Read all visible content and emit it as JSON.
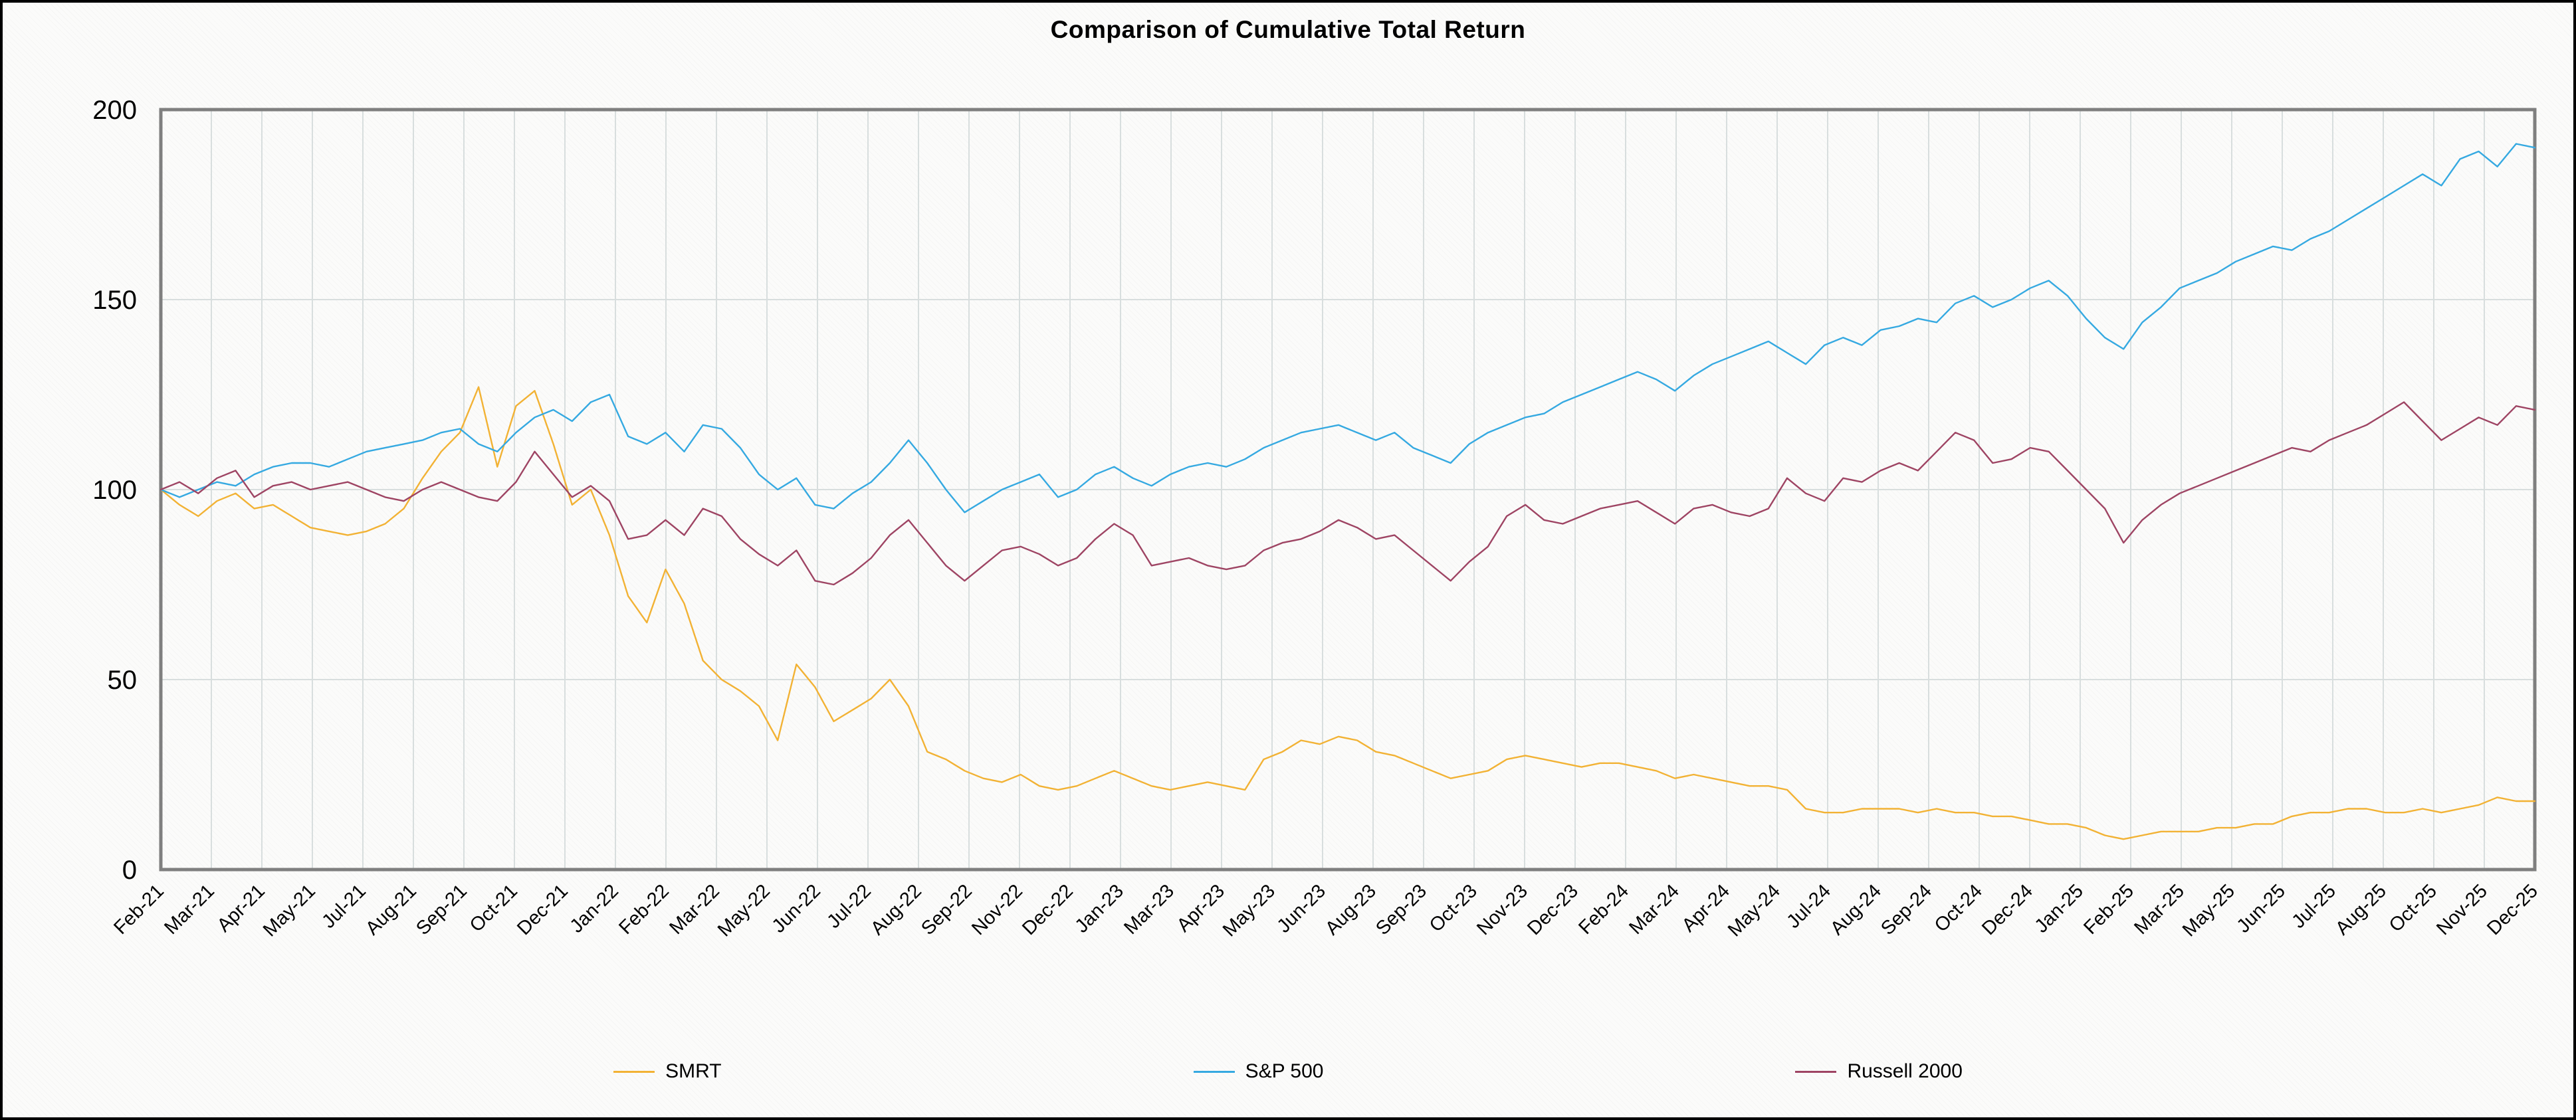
{
  "colors": {
    "grid": "#D8DEDE",
    "frame": "#7F7F7F",
    "background": "#FBFBFA",
    "title_color": "#000000",
    "smrt": "#F2B234",
    "sp500": "#35A9E1",
    "russell2000": "#9E4463"
  },
  "chart_data": {
    "type": "line",
    "title": "Comparison of Cumulative Total Return",
    "xlabel": "",
    "ylabel": "",
    "ylim": [
      0,
      200
    ],
    "y_ticks": [
      0,
      50,
      100,
      150,
      200
    ],
    "grid": "both",
    "legend_position": "bottom-center",
    "x_tick_labels": [
      "Feb-21",
      "Mar-21",
      "Apr-21",
      "May-21",
      "Jul-21",
      "Aug-21",
      "Sep-21",
      "Oct-21",
      "Dec-21",
      "Jan-22",
      "Feb-22",
      "Mar-22",
      "May-22",
      "Jun-22",
      "Jul-22",
      "Aug-22",
      "Sep-22",
      "Nov-22",
      "Dec-22",
      "Jan-23",
      "Mar-23",
      "Apr-23",
      "May-23",
      "Jun-23",
      "Aug-23",
      "Sep-23",
      "Oct-23",
      "Nov-23",
      "Dec-23",
      "Feb-24",
      "Mar-24",
      "Apr-24",
      "May-24",
      "Jul-24",
      "Aug-24",
      "Sep-24",
      "Oct-24",
      "Dec-24",
      "Jan-25",
      "Feb-25",
      "Mar-25",
      "May-25",
      "Jun-25",
      "Jul-25",
      "Aug-25",
      "Oct-25",
      "Nov-25",
      "Dec-25"
    ],
    "x_start": "Feb-21",
    "x_end": "Dec-25",
    "sampling": "approx biweekly, indexed to 100 at start",
    "series": [
      {
        "name": "SMRT",
        "color": "#F2B234",
        "values": [
          100,
          96,
          93,
          97,
          99,
          95,
          96,
          93,
          90,
          89,
          88,
          89,
          91,
          95,
          103,
          110,
          115,
          127,
          106,
          122,
          126,
          112,
          96,
          100,
          88,
          72,
          65,
          79,
          70,
          55,
          50,
          47,
          43,
          34,
          54,
          48,
          39,
          42,
          45,
          50,
          43,
          31,
          29,
          26,
          24,
          23,
          25,
          22,
          21,
          22,
          24,
          26,
          24,
          22,
          21,
          22,
          23,
          22,
          21,
          29,
          31,
          34,
          33,
          35,
          34,
          31,
          30,
          28,
          26,
          24,
          25,
          26,
          29,
          30,
          29,
          28,
          27,
          28,
          28,
          27,
          26,
          24,
          25,
          24,
          23,
          22,
          22,
          21,
          16,
          15,
          15,
          16,
          16,
          16,
          15,
          16,
          15,
          15,
          14,
          14,
          13,
          12,
          12,
          11,
          9,
          8,
          9,
          10,
          10,
          10,
          11,
          11,
          12,
          12,
          14,
          15,
          15,
          16,
          16,
          15,
          15,
          16,
          15,
          16,
          17,
          19,
          18,
          18
        ]
      },
      {
        "name": "S&P 500",
        "color": "#35A9E1",
        "values": [
          100,
          98,
          100,
          102,
          101,
          104,
          106,
          107,
          107,
          106,
          108,
          110,
          111,
          112,
          113,
          115,
          116,
          112,
          110,
          115,
          119,
          121,
          118,
          123,
          125,
          114,
          112,
          115,
          110,
          117,
          116,
          111,
          104,
          100,
          103,
          96,
          95,
          99,
          102,
          107,
          113,
          107,
          100,
          94,
          97,
          100,
          102,
          104,
          98,
          100,
          104,
          106,
          103,
          101,
          104,
          106,
          107,
          106,
          108,
          111,
          113,
          115,
          116,
          117,
          115,
          113,
          115,
          111,
          109,
          107,
          112,
          115,
          117,
          119,
          120,
          123,
          125,
          127,
          129,
          131,
          129,
          126,
          130,
          133,
          135,
          137,
          139,
          136,
          133,
          138,
          140,
          138,
          142,
          143,
          145,
          144,
          149,
          151,
          148,
          150,
          153,
          155,
          151,
          145,
          140,
          137,
          144,
          148,
          153,
          155,
          157,
          160,
          162,
          164,
          163,
          166,
          168,
          171,
          174,
          177,
          180,
          183,
          180,
          187,
          189,
          185,
          191,
          190
        ]
      },
      {
        "name": "Russell 2000",
        "color": "#9E4463",
        "values": [
          100,
          102,
          99,
          103,
          105,
          98,
          101,
          102,
          100,
          101,
          102,
          100,
          98,
          97,
          100,
          102,
          100,
          98,
          97,
          102,
          110,
          104,
          98,
          101,
          97,
          87,
          88,
          92,
          88,
          95,
          93,
          87,
          83,
          80,
          84,
          76,
          75,
          78,
          82,
          88,
          92,
          86,
          80,
          76,
          80,
          84,
          85,
          83,
          80,
          82,
          87,
          91,
          88,
          80,
          81,
          82,
          80,
          79,
          80,
          84,
          86,
          87,
          89,
          92,
          90,
          87,
          88,
          84,
          80,
          76,
          81,
          85,
          93,
          96,
          92,
          91,
          93,
          95,
          96,
          97,
          94,
          91,
          95,
          96,
          94,
          93,
          95,
          103,
          99,
          97,
          103,
          102,
          105,
          107,
          105,
          110,
          115,
          113,
          107,
          108,
          111,
          110,
          105,
          100,
          95,
          86,
          92,
          96,
          99,
          101,
          103,
          105,
          107,
          109,
          111,
          110,
          113,
          115,
          117,
          120,
          123,
          118,
          113,
          116,
          119,
          117,
          122,
          121
        ]
      }
    ]
  }
}
